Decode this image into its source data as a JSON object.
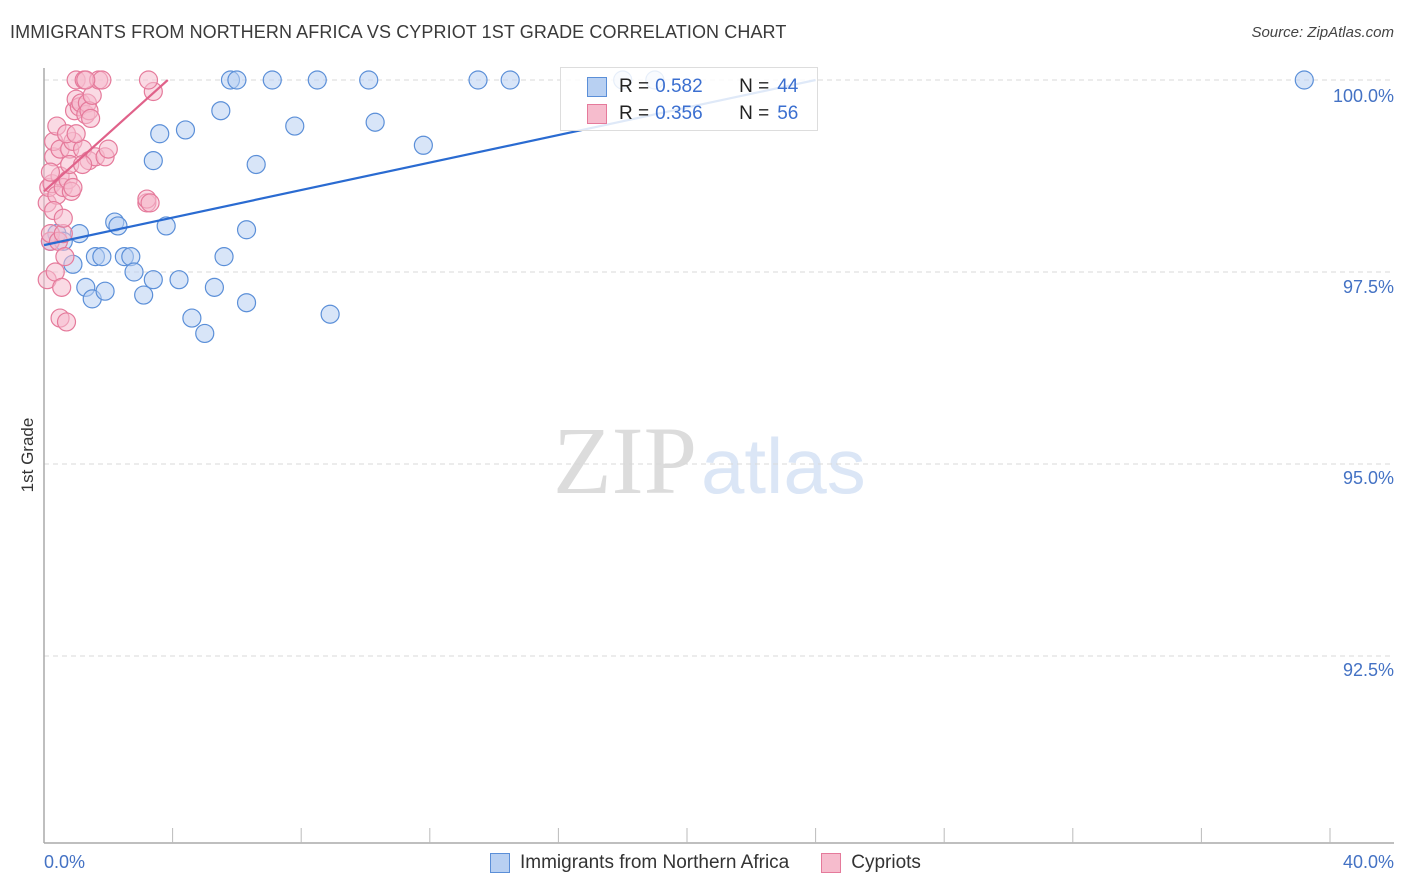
{
  "header": {
    "title": "IMMIGRANTS FROM NORTHERN AFRICA VS CYPRIOT 1ST GRADE CORRELATION CHART",
    "source": "Source: ZipAtlas.com"
  },
  "axes": {
    "ylabel": "1st Grade",
    "yticks": [
      "100.0%",
      "97.5%",
      "95.0%",
      "92.5%"
    ],
    "xtick_left": "0.0%",
    "xtick_right": "40.0%"
  },
  "legend": {
    "series1": {
      "r_label": "R =",
      "r_value": "0.582",
      "n_label": "N =",
      "n_value": "44"
    },
    "series2": {
      "r_label": "R =",
      "r_value": "0.356",
      "n_label": "N =",
      "n_value": "56"
    }
  },
  "bottom_legend": {
    "series1": "Immigrants from Northern Africa",
    "series2": "Cypriots"
  },
  "watermark": {
    "zip": "ZIP",
    "atlas": "atlas"
  },
  "colors": {
    "blue_fill": "#b8d0f2",
    "blue_stroke": "#5b8fd8",
    "blue_line": "#2a6bd1",
    "pink_fill": "#f6bccd",
    "pink_stroke": "#e57a9b",
    "pink_line": "#e0628a",
    "tick_text": "#4472c4"
  },
  "chart_data": {
    "type": "scatter",
    "title": "IMMIGRANTS FROM NORTHERN AFRICA VS CYPRIOT 1ST GRADE CORRELATION CHART",
    "xlabel": "",
    "ylabel": "1st Grade",
    "xlim": [
      0,
      40
    ],
    "ylim": [
      89.9,
      100.4
    ],
    "yticks": [
      92.5,
      95.0,
      97.5,
      100.0
    ],
    "grid": "horizontal dashed",
    "legend_position": "top-center inset + bottom",
    "series": [
      {
        "name": "Immigrants from Northern Africa",
        "R": 0.582,
        "N": 44,
        "trendline": {
          "x": [
            0.0,
            24.0
          ],
          "y": [
            97.85,
            100.0
          ]
        },
        "points": [
          [
            0.2,
            97.9
          ],
          [
            0.4,
            98.0
          ],
          [
            0.6,
            97.9
          ],
          [
            0.9,
            97.6
          ],
          [
            1.1,
            98.0
          ],
          [
            1.3,
            97.3
          ],
          [
            1.5,
            97.15
          ],
          [
            1.6,
            97.7
          ],
          [
            1.8,
            97.7
          ],
          [
            1.9,
            97.25
          ],
          [
            2.2,
            98.15
          ],
          [
            2.3,
            98.1
          ],
          [
            2.5,
            97.7
          ],
          [
            2.7,
            97.7
          ],
          [
            2.8,
            97.5
          ],
          [
            3.1,
            97.2
          ],
          [
            3.4,
            97.4
          ],
          [
            3.4,
            98.95
          ],
          [
            3.6,
            99.3
          ],
          [
            3.8,
            98.1
          ],
          [
            4.2,
            97.4
          ],
          [
            4.4,
            99.35
          ],
          [
            4.6,
            96.9
          ],
          [
            5.0,
            96.7
          ],
          [
            5.3,
            97.3
          ],
          [
            5.5,
            99.6
          ],
          [
            5.6,
            97.7
          ],
          [
            5.8,
            100.0
          ],
          [
            6.0,
            100.0
          ],
          [
            6.3,
            97.1
          ],
          [
            6.3,
            98.05
          ],
          [
            6.6,
            98.9
          ],
          [
            7.1,
            100.0
          ],
          [
            7.8,
            99.4
          ],
          [
            8.5,
            100.0
          ],
          [
            8.9,
            96.95
          ],
          [
            10.1,
            100.0
          ],
          [
            10.3,
            99.45
          ],
          [
            11.8,
            99.15
          ],
          [
            13.5,
            100.0
          ],
          [
            14.5,
            100.0
          ],
          [
            18.0,
            100.0
          ],
          [
            19.0,
            100.0
          ],
          [
            39.2,
            100.0
          ]
        ]
      },
      {
        "name": "Cypriots",
        "R": 0.356,
        "N": 56,
        "trendline": {
          "x": [
            0.0,
            3.85
          ],
          "y": [
            98.55,
            100.0
          ]
        },
        "points": [
          [
            0.1,
            97.4
          ],
          [
            0.1,
            98.4
          ],
          [
            0.15,
            98.6
          ],
          [
            0.2,
            97.9
          ],
          [
            0.2,
            98.0
          ],
          [
            0.25,
            98.65
          ],
          [
            0.3,
            99.0
          ],
          [
            0.3,
            99.2
          ],
          [
            0.35,
            97.5
          ],
          [
            0.4,
            99.4
          ],
          [
            0.4,
            98.5
          ],
          [
            0.45,
            97.9
          ],
          [
            0.5,
            98.75
          ],
          [
            0.5,
            99.1
          ],
          [
            0.5,
            96.9
          ],
          [
            0.55,
            97.3
          ],
          [
            0.6,
            98.6
          ],
          [
            0.6,
            98.0
          ],
          [
            0.65,
            97.7
          ],
          [
            0.7,
            96.85
          ],
          [
            0.75,
            98.7
          ],
          [
            0.8,
            99.1
          ],
          [
            0.85,
            98.55
          ],
          [
            0.9,
            99.2
          ],
          [
            0.9,
            98.6
          ],
          [
            0.95,
            99.6
          ],
          [
            1.0,
            99.75
          ],
          [
            1.0,
            100.0
          ],
          [
            1.1,
            99.65
          ],
          [
            1.15,
            99.7
          ],
          [
            1.2,
            99.1
          ],
          [
            1.25,
            100.0
          ],
          [
            1.3,
            99.55
          ],
          [
            1.35,
            99.7
          ],
          [
            1.4,
            98.95
          ],
          [
            1.4,
            99.6
          ],
          [
            1.45,
            99.5
          ],
          [
            1.5,
            99.8
          ],
          [
            1.6,
            99.0
          ],
          [
            1.7,
            100.0
          ],
          [
            1.8,
            100.0
          ],
          [
            1.9,
            99.0
          ],
          [
            2.0,
            99.1
          ],
          [
            3.4,
            99.85
          ],
          [
            3.2,
            98.4
          ],
          [
            3.2,
            98.45
          ],
          [
            3.25,
            100.0
          ],
          [
            3.3,
            98.4
          ],
          [
            0.2,
            98.8
          ],
          [
            0.3,
            98.3
          ],
          [
            0.7,
            99.3
          ],
          [
            0.8,
            98.9
          ],
          [
            1.0,
            99.3
          ],
          [
            1.2,
            98.9
          ],
          [
            1.3,
            100.0
          ],
          [
            0.6,
            98.2
          ]
        ]
      }
    ]
  }
}
